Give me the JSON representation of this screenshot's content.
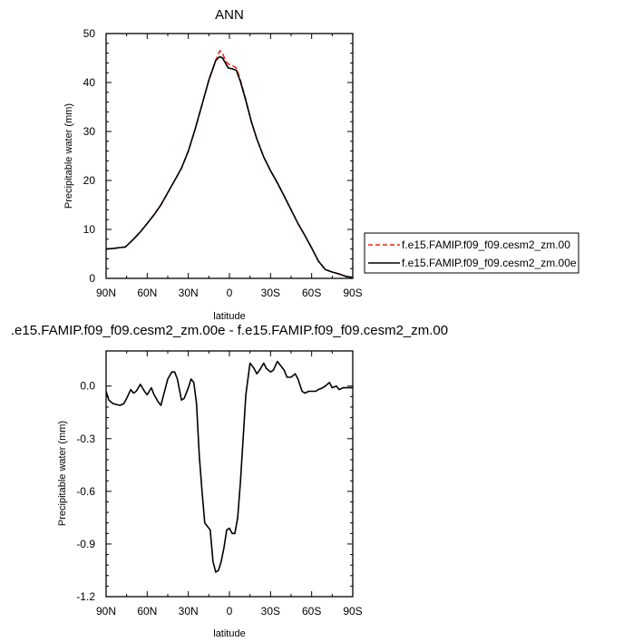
{
  "chart_data": [
    {
      "type": "line",
      "title": "ANN",
      "xlabel": "latitude",
      "ylabel": "Precipitable water (mm)",
      "xlim": [
        90,
        -90
      ],
      "ylim": [
        0,
        50
      ],
      "xticks": [
        90,
        60,
        30,
        0,
        -30,
        -60,
        -90
      ],
      "xtick_labels": [
        "90N",
        "60N",
        "30N",
        "0",
        "30S",
        "60S",
        "90S"
      ],
      "yticks": [
        0,
        10,
        20,
        30,
        40,
        50
      ],
      "ytick_labels": [
        "0",
        "10",
        "20",
        "30",
        "40",
        "50"
      ],
      "legend_position": "right",
      "series": [
        {
          "name": "f.e15.FAMIP.f09_f09.cesm2_zm.00",
          "color": "#e8261c",
          "dash": "dashed",
          "x": [
            90,
            85,
            80,
            76,
            70,
            65,
            60,
            55,
            50,
            45,
            40,
            35,
            30,
            25,
            20,
            15,
            10,
            7,
            5,
            3,
            1,
            -2,
            -5,
            -8,
            -12,
            -16,
            -20,
            -25,
            -30,
            -35,
            -40,
            -45,
            -50,
            -55,
            -60,
            -65,
            -70,
            -75,
            -80,
            -85,
            -90
          ],
          "y": [
            6.0,
            6.1,
            6.3,
            6.4,
            8.0,
            9.5,
            11.2,
            13.0,
            15.0,
            17.5,
            20.0,
            22.5,
            26.0,
            30.5,
            35.5,
            40.5,
            44.5,
            46.5,
            46.0,
            44.5,
            43.8,
            43.5,
            43.0,
            40.5,
            36.5,
            32.0,
            28.5,
            24.8,
            22.0,
            19.5,
            16.8,
            14.0,
            11.2,
            8.8,
            6.2,
            3.5,
            1.8,
            1.3,
            0.9,
            0.4,
            0.2
          ]
        },
        {
          "name": "f.e15.FAMIP.f09_f09.cesm2_zm.00e",
          "color": "#000000",
          "dash": "solid",
          "x": [
            90,
            85,
            80,
            76,
            70,
            65,
            60,
            55,
            50,
            45,
            40,
            35,
            30,
            25,
            20,
            15,
            10,
            7,
            5,
            3,
            1,
            -2,
            -5,
            -8,
            -12,
            -16,
            -20,
            -25,
            -30,
            -35,
            -40,
            -45,
            -50,
            -55,
            -60,
            -65,
            -70,
            -75,
            -80,
            -85,
            -90
          ],
          "y": [
            6.0,
            6.1,
            6.3,
            6.4,
            8.0,
            9.5,
            11.2,
            13.0,
            15.0,
            17.5,
            20.0,
            22.5,
            26.0,
            30.5,
            35.5,
            40.5,
            44.5,
            45.3,
            45.0,
            44.0,
            43.0,
            42.8,
            42.5,
            40.2,
            36.3,
            32.0,
            28.5,
            24.8,
            22.0,
            19.5,
            16.8,
            14.0,
            11.2,
            8.8,
            6.2,
            3.5,
            1.8,
            1.3,
            0.9,
            0.4,
            0.2
          ]
        }
      ]
    },
    {
      "type": "line",
      "title": ".e15.FAMIP.f09_f09.cesm2_zm.00e - f.e15.FAMIP.f09_f09.cesm2_zm.00",
      "xlabel": "latitude",
      "ylabel": "Precipitable water (mm)",
      "xlim": [
        90,
        -90
      ],
      "ylim": [
        -1.2,
        0.2
      ],
      "xticks": [
        90,
        60,
        30,
        0,
        -30,
        -60,
        -90
      ],
      "xtick_labels": [
        "90N",
        "60N",
        "30N",
        "0",
        "30S",
        "60S",
        "90S"
      ],
      "yticks": [
        0.0,
        -0.3,
        -0.6,
        -0.9,
        -1.2
      ],
      "ytick_labels": [
        "0.0",
        "-0.3",
        "-0.6",
        "-0.9",
        "-1.2"
      ],
      "series": [
        {
          "color": "#000000",
          "dash": "solid",
          "x": [
            90,
            88,
            85,
            80,
            77,
            75,
            72,
            70,
            68,
            65,
            62,
            60,
            57,
            55,
            52,
            50,
            47,
            45,
            42,
            40,
            38,
            35,
            33,
            30,
            28,
            26,
            24,
            22,
            20,
            18,
            16,
            14,
            12,
            10,
            8,
            6,
            4,
            2,
            0,
            -2,
            -4,
            -6,
            -8,
            -10,
            -12,
            -15,
            -18,
            -20,
            -22,
            -25,
            -27,
            -30,
            -32,
            -35,
            -37,
            -40,
            -42,
            -45,
            -48,
            -50,
            -53,
            -55,
            -58,
            -60,
            -63,
            -65,
            -68,
            -70,
            -73,
            -75,
            -78,
            -80,
            -83,
            -85,
            -88,
            -90
          ],
          "y": [
            -0.03,
            -0.08,
            -0.1,
            -0.11,
            -0.1,
            -0.07,
            -0.02,
            -0.04,
            -0.03,
            0.01,
            -0.03,
            -0.05,
            -0.01,
            -0.05,
            -0.09,
            -0.11,
            -0.02,
            0.04,
            0.08,
            0.08,
            0.04,
            -0.08,
            -0.07,
            -0.01,
            0.04,
            0.02,
            -0.1,
            -0.4,
            -0.6,
            -0.78,
            -0.8,
            -0.82,
            -1.0,
            -1.06,
            -1.05,
            -1.0,
            -0.92,
            -0.82,
            -0.81,
            -0.84,
            -0.84,
            -0.75,
            -0.55,
            -0.3,
            -0.05,
            0.13,
            0.1,
            0.07,
            0.09,
            0.13,
            0.1,
            0.08,
            0.09,
            0.14,
            0.12,
            0.09,
            0.05,
            0.05,
            0.07,
            0.04,
            -0.03,
            -0.04,
            -0.03,
            -0.03,
            -0.03,
            -0.02,
            -0.01,
            0.0,
            0.02,
            -0.01,
            0.0,
            -0.02,
            -0.01,
            -0.01,
            -0.01,
            -0.01
          ]
        }
      ]
    }
  ]
}
